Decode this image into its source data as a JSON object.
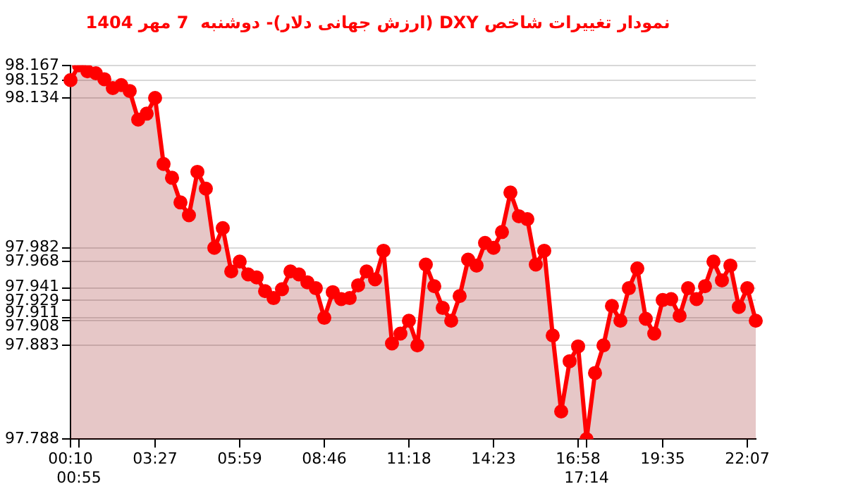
{
  "chart_data": {
    "type": "area",
    "title": "نمودار تغییرات شاخص DXY (ارزش جهانی دلار)- دوشنبه  7 مهر 1404",
    "categories": [
      "00:10",
      "00:55",
      null,
      null,
      null,
      null,
      null,
      null,
      null,
      null,
      "03:27",
      null,
      null,
      null,
      null,
      null,
      null,
      null,
      null,
      null,
      "05:59",
      null,
      null,
      null,
      null,
      null,
      null,
      null,
      null,
      null,
      "08:46",
      null,
      null,
      null,
      null,
      null,
      null,
      null,
      null,
      null,
      "11:18",
      null,
      null,
      null,
      null,
      null,
      null,
      null,
      null,
      null,
      "14:23",
      null,
      null,
      null,
      null,
      null,
      null,
      null,
      null,
      null,
      "16:58",
      "17:14",
      null,
      null,
      null,
      null,
      null,
      null,
      null,
      null,
      "19:35",
      null,
      null,
      null,
      null,
      null,
      null,
      null,
      null,
      null,
      "22:07",
      null
    ],
    "series": [
      {
        "color": "#ff0000",
        "values": [
          98.152,
          98.167,
          98.161,
          98.159,
          98.153,
          98.144,
          98.147,
          98.141,
          98.112,
          98.118,
          98.134,
          98.067,
          98.053,
          98.028,
          98.015,
          98.059,
          98.042,
          97.982,
          98.002,
          97.958,
          97.968,
          97.955,
          97.952,
          97.938,
          97.931,
          97.94,
          97.958,
          97.955,
          97.947,
          97.941,
          97.911,
          97.937,
          97.93,
          97.931,
          97.944,
          97.958,
          97.95,
          97.979,
          97.885,
          97.895,
          97.908,
          97.883,
          97.965,
          97.943,
          97.921,
          97.908,
          97.933,
          97.97,
          97.964,
          97.987,
          97.982,
          97.998,
          98.038,
          98.014,
          98.011,
          97.965,
          97.979,
          97.893,
          97.816,
          97.867,
          97.882,
          97.788,
          97.855,
          97.883,
          97.923,
          97.908,
          97.941,
          97.961,
          97.91,
          97.895,
          97.929,
          97.93,
          97.913,
          97.941,
          97.93,
          97.943,
          97.968,
          97.949,
          97.964,
          97.922,
          97.941,
          97.908
        ]
      }
    ],
    "ylim": [
      97.788,
      98.167
    ],
    "yticks": [
      97.788,
      97.883,
      97.908,
      97.911,
      97.929,
      97.941,
      97.968,
      97.982,
      98.134,
      98.152,
      98.167
    ],
    "grid": "y",
    "legend": false,
    "marker": "circle",
    "line_style": "solid"
  }
}
